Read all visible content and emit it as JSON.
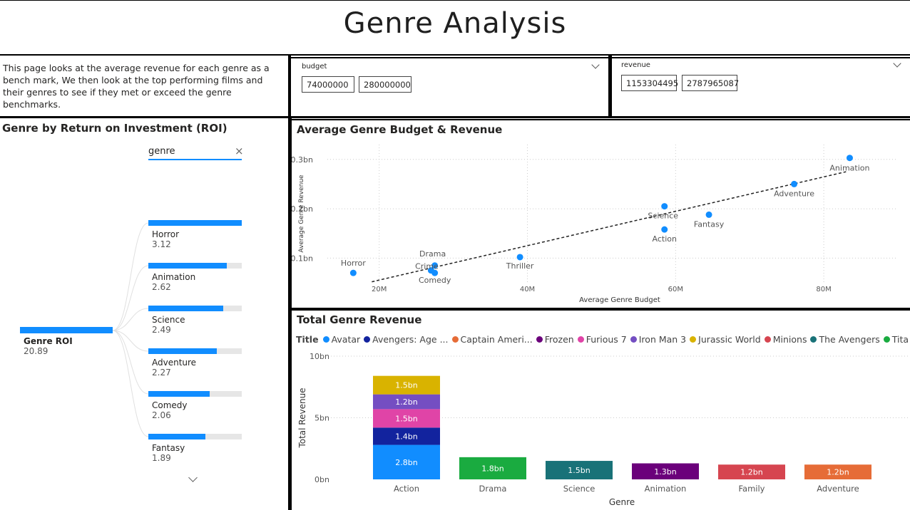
{
  "page": {
    "title": "Genre Analysis"
  },
  "description": "This page looks at the average revenue for each genre as a bench mark, We then look at the top performing films and their genres to see if they met or exceed the genre benchmarks.",
  "slicers": {
    "budget": {
      "label": "budget",
      "min": "74000000",
      "max": "280000000"
    },
    "revenue": {
      "label": "revenue",
      "min": "1153304495",
      "max": "2787965087"
    }
  },
  "decomp": {
    "title": "Genre by Return on Investment (ROI)",
    "filter_label": "genre",
    "root": {
      "label": "Genre ROI",
      "value": "20.89"
    },
    "items": [
      {
        "label": "Horror",
        "value": "3.12",
        "fraction": 1.0
      },
      {
        "label": "Animation",
        "value": "2.62",
        "fraction": 0.84
      },
      {
        "label": "Science",
        "value": "2.49",
        "fraction": 0.8
      },
      {
        "label": "Adventure",
        "value": "2.27",
        "fraction": 0.73
      },
      {
        "label": "Comedy",
        "value": "2.06",
        "fraction": 0.66
      },
      {
        "label": "Fantasy",
        "value": "1.89",
        "fraction": 0.61
      }
    ]
  },
  "chart_data": [
    {
      "type": "scatter",
      "title": "Average Genre Budget & Revenue",
      "xlabel": "Average Genre Budget",
      "ylabel": "Average Genre Revenue",
      "x_ticks": [
        "20M",
        "40M",
        "60M",
        "80M"
      ],
      "y_ticks": [
        "0.1bn",
        "0.2bn",
        "0.3bn"
      ],
      "xlim": [
        13,
        90
      ],
      "ylim": [
        0.05,
        0.33
      ],
      "grid": true,
      "trendline": {
        "x": [
          19,
          83
        ],
        "y": [
          0.052,
          0.275
        ]
      },
      "points": [
        {
          "label": "Horror",
          "x": 16.5,
          "y": 0.07
        },
        {
          "label": "Drama",
          "x": 27.5,
          "y": 0.085
        },
        {
          "label": "Crime",
          "x": 27.0,
          "y": 0.075
        },
        {
          "label": "Comedy",
          "x": 27.5,
          "y": 0.07
        },
        {
          "label": "Thriller",
          "x": 39.0,
          "y": 0.102
        },
        {
          "label": "Science",
          "x": 58.5,
          "y": 0.205
        },
        {
          "label": "Action",
          "x": 58.5,
          "y": 0.158
        },
        {
          "label": "Fantasy",
          "x": 64.5,
          "y": 0.188
        },
        {
          "label": "Adventure",
          "x": 76.0,
          "y": 0.25
        },
        {
          "label": "Animation",
          "x": 83.5,
          "y": 0.303
        }
      ],
      "color": "#118DFF"
    },
    {
      "type": "bar",
      "title": "Total Genre Revenue",
      "xlabel": "Genre",
      "ylabel": "Total Revenue",
      "legend_title": "Title",
      "legend": [
        {
          "name": "Avatar",
          "color": "#118DFF"
        },
        {
          "name": "Avengers: Age ...",
          "color": "#12239E"
        },
        {
          "name": "Captain Ameri...",
          "color": "#E66C37"
        },
        {
          "name": "Frozen",
          "color": "#6B007B"
        },
        {
          "name": "Furious 7",
          "color": "#E044A7"
        },
        {
          "name": "Iron Man 3",
          "color": "#744EC2"
        },
        {
          "name": "Jurassic World",
          "color": "#D9B300"
        },
        {
          "name": "Minions",
          "color": "#D64550"
        },
        {
          "name": "The Avengers",
          "color": "#197278"
        },
        {
          "name": "Titanic",
          "color": "#1AAB40"
        }
      ],
      "y_ticks": [
        "0bn",
        "5bn",
        "10bn"
      ],
      "ylim": [
        0,
        10
      ],
      "categories": [
        "Action",
        "Drama",
        "Science",
        "Animation",
        "Family",
        "Adventure"
      ],
      "stacks": [
        [
          {
            "series": "Avatar",
            "value": 2.8,
            "label": "2.8bn",
            "color": "#118DFF"
          },
          {
            "series": "Avengers: Age ...",
            "value": 1.4,
            "label": "1.4bn",
            "color": "#12239E"
          },
          {
            "series": "Furious 7",
            "value": 1.5,
            "label": "1.5bn",
            "color": "#E044A7"
          },
          {
            "series": "Iron Man 3",
            "value": 1.2,
            "label": "1.2bn",
            "color": "#744EC2"
          },
          {
            "series": "Jurassic World",
            "value": 1.5,
            "label": "1.5bn",
            "color": "#D9B300"
          }
        ],
        [
          {
            "series": "Titanic",
            "value": 1.8,
            "label": "1.8bn",
            "color": "#1AAB40"
          }
        ],
        [
          {
            "series": "The Avengers",
            "value": 1.5,
            "label": "1.5bn",
            "color": "#197278"
          }
        ],
        [
          {
            "series": "Frozen",
            "value": 1.3,
            "label": "1.3bn",
            "color": "#6B007B"
          }
        ],
        [
          {
            "series": "Minions",
            "value": 1.2,
            "label": "1.2bn",
            "color": "#D64550"
          }
        ],
        [
          {
            "series": "Captain Ameri...",
            "value": 1.2,
            "label": "1.2bn",
            "color": "#E66C37"
          }
        ]
      ]
    }
  ]
}
